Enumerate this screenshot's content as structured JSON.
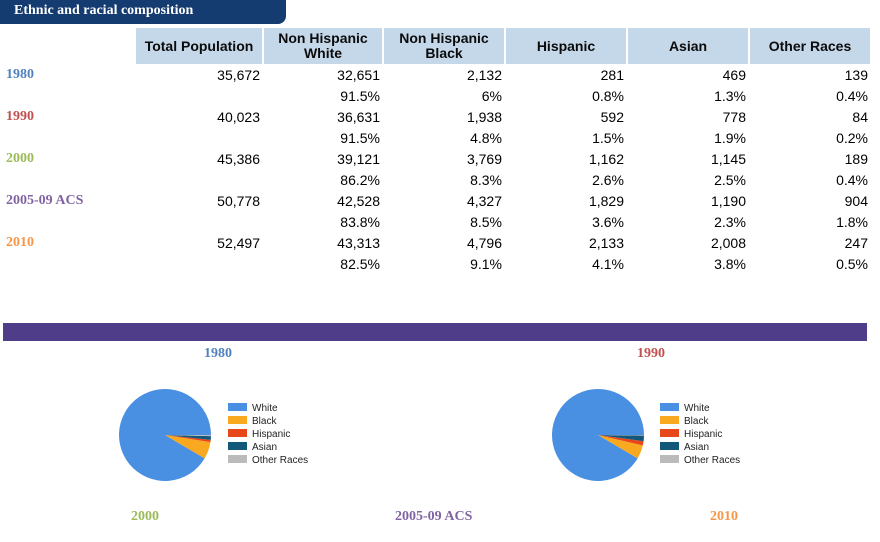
{
  "section_title": "Ethnic and racial composition",
  "table": {
    "headers": [
      "Total Population",
      "Non Hispanic White",
      "Non Hispanic Black",
      "Hispanic",
      "Asian",
      "Other Races"
    ],
    "rows": [
      {
        "year": "1980",
        "color": "#4f81bd",
        "counts": [
          "35,672",
          "32,651",
          "2,132",
          "281",
          "469",
          "139"
        ],
        "percents": [
          "",
          "91.5%",
          "6%",
          "0.8%",
          "1.3%",
          "0.4%"
        ]
      },
      {
        "year": "1990",
        "color": "#c0504d",
        "counts": [
          "40,023",
          "36,631",
          "1,938",
          "592",
          "778",
          "84"
        ],
        "percents": [
          "",
          "91.5%",
          "4.8%",
          "1.5%",
          "1.9%",
          "0.2%"
        ]
      },
      {
        "year": "2000",
        "color": "#9bbb59",
        "counts": [
          "45,386",
          "39,121",
          "3,769",
          "1,162",
          "1,145",
          "189"
        ],
        "percents": [
          "",
          "86.2%",
          "8.3%",
          "2.6%",
          "2.5%",
          "0.4%"
        ]
      },
      {
        "year": "2005-09 ACS",
        "color": "#8064a2",
        "counts": [
          "50,778",
          "42,528",
          "4,327",
          "1,829",
          "1,190",
          "904"
        ],
        "percents": [
          "",
          "83.8%",
          "8.5%",
          "3.6%",
          "2.3%",
          "1.8%"
        ]
      },
      {
        "year": "2010",
        "color": "#f79646",
        "counts": [
          "52,497",
          "43,313",
          "4,796",
          "2,133",
          "2,008",
          "247"
        ],
        "percents": [
          "",
          "82.5%",
          "9.1%",
          "4.1%",
          "3.8%",
          "0.5%"
        ]
      }
    ]
  },
  "chart_labels": [
    {
      "text": "1980",
      "color": "#4f81bd"
    },
    {
      "text": "1990",
      "color": "#c0504d"
    },
    {
      "text": "2000",
      "color": "#9bbb59"
    },
    {
      "text": "2005-09 ACS",
      "color": "#8064a2"
    },
    {
      "text": "2010",
      "color": "#f79646"
    }
  ],
  "chart_data": [
    {
      "type": "pie",
      "title": "1980",
      "categories": [
        "White",
        "Black",
        "Hispanic",
        "Asian",
        "Other Races"
      ],
      "values": [
        32651,
        2132,
        281,
        469,
        139
      ],
      "colors": [
        "#4a90e2",
        "#f8a91f",
        "#e8471a",
        "#13577a",
        "#bbbbbb"
      ],
      "legend": "right"
    },
    {
      "type": "pie",
      "title": "1990",
      "categories": [
        "White",
        "Black",
        "Hispanic",
        "Asian",
        "Other Races"
      ],
      "values": [
        36631,
        1938,
        592,
        778,
        84
      ],
      "colors": [
        "#4a90e2",
        "#f8a91f",
        "#e8471a",
        "#13577a",
        "#bbbbbb"
      ],
      "legend": "right"
    }
  ]
}
